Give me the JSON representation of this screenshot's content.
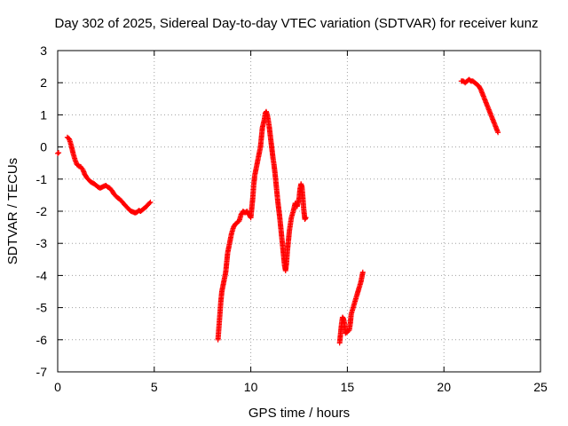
{
  "chart_data": {
    "type": "scatter",
    "title": "Day 302 of 2025, Sidereal Day-to-day VTEC variation (SDTVAR) for receiver kunz",
    "xlabel": "GPS time / hours",
    "ylabel": "SDTVAR / TECUs",
    "xlim": [
      0,
      25
    ],
    "ylim": [
      -7,
      3
    ],
    "x_ticks": [
      0,
      5,
      10,
      15,
      20,
      25
    ],
    "x_tick_labels": [
      "0",
      "5",
      "10",
      "15",
      "20",
      "25"
    ],
    "y_ticks": [
      -7,
      -6,
      -5,
      -4,
      -3,
      -2,
      -1,
      0,
      1,
      2,
      3
    ],
    "y_tick_labels": [
      "-7",
      "-6",
      "-5",
      "-4",
      "-3",
      "-2",
      "-1",
      "0",
      "1",
      "2",
      "3"
    ],
    "grid": true,
    "marker": "plus",
    "color": "#ff0000",
    "series": [
      {
        "name": "SDTVAR",
        "segments": [
          [
            [
              0.0,
              -0.2
            ],
            [
              0.05,
              -0.18
            ]
          ],
          [
            [
              0.5,
              0.3
            ],
            [
              0.6,
              0.25
            ],
            [
              0.7,
              0.05
            ],
            [
              0.8,
              -0.2
            ],
            [
              0.9,
              -0.4
            ],
            [
              1.0,
              -0.55
            ],
            [
              1.1,
              -0.6
            ],
            [
              1.2,
              -0.62
            ],
            [
              1.3,
              -0.7
            ],
            [
              1.4,
              -0.85
            ],
            [
              1.5,
              -0.95
            ],
            [
              1.6,
              -1.02
            ],
            [
              1.7,
              -1.08
            ],
            [
              1.8,
              -1.12
            ],
            [
              1.9,
              -1.15
            ],
            [
              2.0,
              -1.2
            ],
            [
              2.1,
              -1.25
            ],
            [
              2.2,
              -1.28
            ],
            [
              2.3,
              -1.25
            ],
            [
              2.4,
              -1.22
            ],
            [
              2.5,
              -1.2
            ],
            [
              2.6,
              -1.25
            ],
            [
              2.7,
              -1.28
            ],
            [
              2.8,
              -1.35
            ],
            [
              2.9,
              -1.45
            ],
            [
              3.0,
              -1.52
            ],
            [
              3.1,
              -1.58
            ],
            [
              3.2,
              -1.62
            ],
            [
              3.3,
              -1.68
            ],
            [
              3.4,
              -1.75
            ],
            [
              3.5,
              -1.82
            ],
            [
              3.6,
              -1.88
            ],
            [
              3.7,
              -1.95
            ],
            [
              3.8,
              -2.0
            ],
            [
              3.9,
              -2.02
            ],
            [
              4.0,
              -2.05
            ],
            [
              4.1,
              -2.03
            ],
            [
              4.2,
              -1.98
            ],
            [
              4.3,
              -2.0
            ],
            [
              4.4,
              -1.95
            ],
            [
              4.5,
              -1.9
            ],
            [
              4.6,
              -1.85
            ],
            [
              4.7,
              -1.78
            ],
            [
              4.8,
              -1.72
            ]
          ],
          [
            [
              8.3,
              -6.0
            ],
            [
              8.35,
              -5.6
            ],
            [
              8.4,
              -5.2
            ],
            [
              8.45,
              -4.8
            ],
            [
              8.5,
              -4.5
            ],
            [
              8.6,
              -4.2
            ],
            [
              8.7,
              -3.9
            ],
            [
              8.75,
              -3.6
            ],
            [
              8.8,
              -3.3
            ],
            [
              8.9,
              -3.0
            ],
            [
              9.0,
              -2.7
            ],
            [
              9.1,
              -2.5
            ],
            [
              9.2,
              -2.4
            ],
            [
              9.3,
              -2.35
            ],
            [
              9.4,
              -2.3
            ],
            [
              9.5,
              -2.1
            ],
            [
              9.6,
              -2.0
            ],
            [
              9.7,
              -2.05
            ],
            [
              9.8,
              -2.0
            ],
            [
              9.9,
              -2.1
            ],
            [
              10.0,
              -2.2
            ],
            [
              10.05,
              -1.9
            ],
            [
              10.1,
              -1.6
            ],
            [
              10.15,
              -1.2
            ],
            [
              10.2,
              -0.9
            ],
            [
              10.3,
              -0.6
            ],
            [
              10.4,
              -0.3
            ],
            [
              10.5,
              0.0
            ],
            [
              10.55,
              0.3
            ],
            [
              10.6,
              0.6
            ],
            [
              10.7,
              0.85
            ],
            [
              10.75,
              1.05
            ],
            [
              10.8,
              1.1
            ],
            [
              10.85,
              1.0
            ],
            [
              10.9,
              0.85
            ],
            [
              10.95,
              0.65
            ],
            [
              11.0,
              0.4
            ],
            [
              11.05,
              0.15
            ],
            [
              11.1,
              -0.1
            ],
            [
              11.15,
              -0.35
            ],
            [
              11.2,
              -0.55
            ],
            [
              11.25,
              -0.8
            ],
            [
              11.3,
              -1.1
            ],
            [
              11.35,
              -1.4
            ],
            [
              11.4,
              -1.7
            ],
            [
              11.45,
              -1.95
            ],
            [
              11.5,
              -2.2
            ],
            [
              11.55,
              -2.5
            ],
            [
              11.6,
              -2.8
            ],
            [
              11.65,
              -3.1
            ],
            [
              11.7,
              -3.4
            ],
            [
              11.75,
              -3.7
            ],
            [
              11.8,
              -3.85
            ],
            [
              11.85,
              -3.6
            ],
            [
              11.9,
              -3.2
            ],
            [
              11.95,
              -2.9
            ],
            [
              12.0,
              -2.6
            ],
            [
              12.05,
              -2.4
            ],
            [
              12.1,
              -2.2
            ],
            [
              12.2,
              -2.0
            ],
            [
              12.3,
              -1.75
            ],
            [
              12.4,
              -1.85
            ],
            [
              12.5,
              -1.6
            ],
            [
              12.55,
              -1.3
            ],
            [
              12.6,
              -1.15
            ],
            [
              12.65,
              -1.25
            ],
            [
              12.7,
              -1.6
            ],
            [
              12.75,
              -2.0
            ],
            [
              12.8,
              -2.25
            ],
            [
              12.85,
              -2.2
            ]
          ],
          [
            [
              14.6,
              -6.1
            ],
            [
              14.65,
              -5.8
            ],
            [
              14.7,
              -5.5
            ],
            [
              14.75,
              -5.3
            ],
            [
              14.8,
              -5.35
            ],
            [
              14.85,
              -5.5
            ],
            [
              14.9,
              -5.8
            ],
            [
              15.0,
              -5.75
            ],
            [
              15.1,
              -5.7
            ],
            [
              15.15,
              -5.5
            ],
            [
              15.2,
              -5.2
            ],
            [
              15.3,
              -5.0
            ],
            [
              15.4,
              -4.8
            ],
            [
              15.5,
              -4.6
            ],
            [
              15.55,
              -4.5
            ],
            [
              15.6,
              -4.4
            ],
            [
              15.7,
              -4.2
            ],
            [
              15.75,
              -4.05
            ],
            [
              15.8,
              -3.9
            ]
          ],
          [
            [
              20.9,
              2.05
            ],
            [
              21.0,
              2.05
            ],
            [
              21.1,
              2.0
            ],
            [
              21.2,
              2.05
            ],
            [
              21.3,
              2.1
            ],
            [
              21.4,
              2.05
            ],
            [
              21.5,
              2.05
            ],
            [
              21.6,
              2.0
            ],
            [
              21.7,
              1.95
            ],
            [
              21.8,
              1.9
            ],
            [
              21.9,
              1.8
            ],
            [
              22.0,
              1.65
            ],
            [
              22.1,
              1.5
            ],
            [
              22.2,
              1.35
            ],
            [
              22.3,
              1.2
            ],
            [
              22.4,
              1.05
            ],
            [
              22.5,
              0.9
            ],
            [
              22.6,
              0.75
            ],
            [
              22.7,
              0.6
            ],
            [
              22.8,
              0.45
            ]
          ]
        ]
      }
    ]
  }
}
